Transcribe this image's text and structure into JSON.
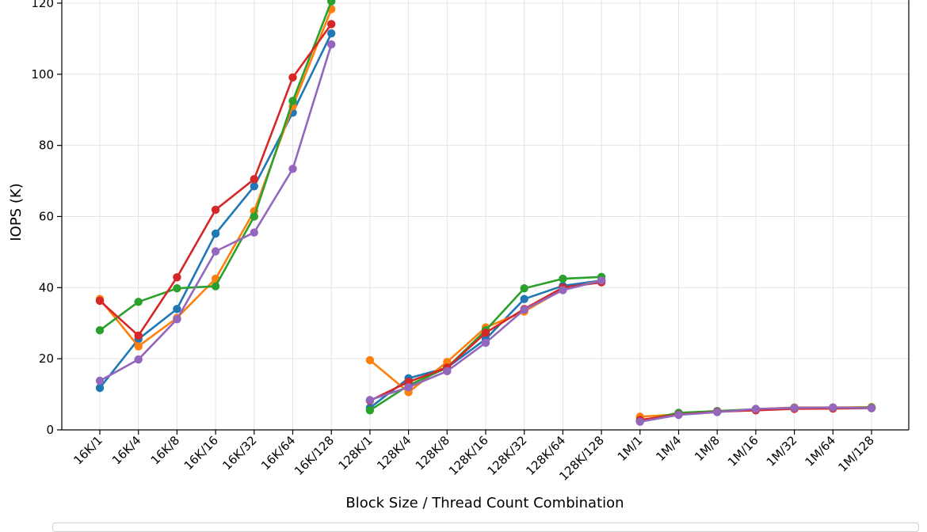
{
  "chart_data": {
    "type": "line",
    "title": "",
    "xlabel": "Block Size / Thread Count Combination",
    "ylabel": "IOPS (K)",
    "ylim": [
      0,
      124
    ],
    "yticks": [
      0,
      20,
      40,
      60,
      80,
      100,
      120
    ],
    "grid": true,
    "categories": [
      "16K/1",
      "16K/4",
      "16K/8",
      "16K/16",
      "16K/32",
      "16K/64",
      "16K/128",
      "128K/1",
      "128K/4",
      "128K/8",
      "128K/16",
      "128K/32",
      "128K/64",
      "128K/128",
      "1M/1",
      "1M/4",
      "1M/8",
      "1M/16",
      "1M/32",
      "1M/64",
      "1M/128"
    ],
    "groups": [
      [
        0,
        6
      ],
      [
        7,
        13
      ],
      [
        14,
        20
      ]
    ],
    "series": [
      {
        "color": "#1f77b4",
        "values": [
          11.8,
          25.5,
          34.0,
          55.2,
          68.5,
          89.2,
          111.5,
          6.2,
          14.5,
          17.5,
          25.5,
          36.8,
          40.5,
          42.0,
          2.5,
          4.5,
          5.2,
          5.7,
          6.1,
          6.2,
          6.3
        ]
      },
      {
        "color": "#ff7f0e",
        "values": [
          36.8,
          23.5,
          31.5,
          42.5,
          61.5,
          91.0,
          118.3,
          19.6,
          10.6,
          19.1,
          28.8,
          33.3,
          39.5,
          42.0,
          3.7,
          4.4,
          5.2,
          5.8,
          6.3,
          6.3,
          6.4
        ]
      },
      {
        "color": "#2ca02c",
        "values": [
          28.0,
          36.0,
          39.8,
          40.4,
          60.0,
          92.5,
          120.5,
          5.5,
          12.5,
          17.5,
          28.0,
          39.8,
          42.5,
          43.0,
          2.5,
          4.8,
          5.3,
          5.8,
          6.2,
          6.2,
          6.3
        ]
      },
      {
        "color": "#d62728",
        "values": [
          36.3,
          26.5,
          42.9,
          61.9,
          70.5,
          99.1,
          114.1,
          8.2,
          13.5,
          17.5,
          27.3,
          34.0,
          40.0,
          41.5,
          2.8,
          4.3,
          5.1,
          5.5,
          5.9,
          6.0,
          6.1
        ]
      },
      {
        "color": "#9467bd",
        "values": [
          13.8,
          19.8,
          31.1,
          50.2,
          55.5,
          73.4,
          108.4,
          8.4,
          12.0,
          16.5,
          24.5,
          33.8,
          39.3,
          42.0,
          2.3,
          4.2,
          5.0,
          5.9,
          6.2,
          6.3,
          6.1
        ]
      }
    ]
  }
}
